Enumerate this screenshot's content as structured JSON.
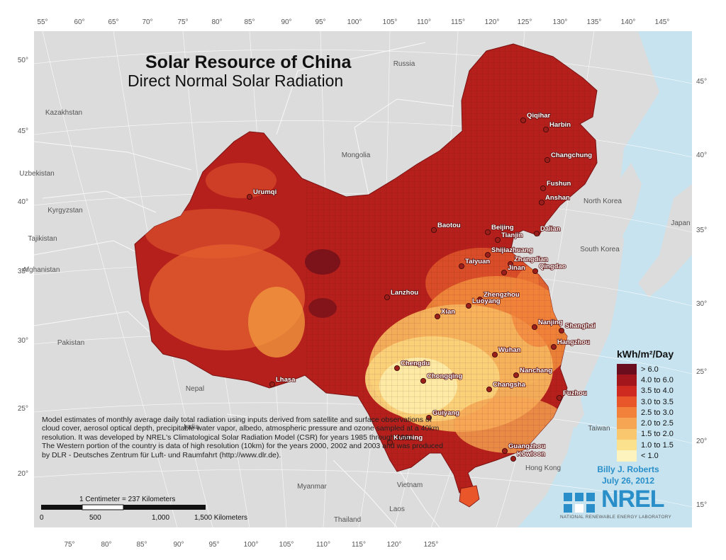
{
  "title": "Solar Resource of China",
  "subtitle": "Direct Normal Solar Radiation",
  "description": {
    "para1": "Model estimates of monthly average daily total radiation using inputs derived from satellite and surface observations of cloud cover, aerosol optical depth, precipitable water vapor, albedo, atmospheric pressure and ozone sampled at a 40km resolution.  It was developed by NREL's Climatological Solar Radiation Model (CSR) for years 1985 through 1991.",
    "para2": "The Western portion of the country is data of high resolution (10km) for the years 2000, 2002 and 2003 and was produced by DLR - Deutsches Zentrum für Luft- und Raumfahrt (http://www.dlr.de)."
  },
  "legend": {
    "title": "kWh/m²/Day",
    "items": [
      {
        "label": "> 6.0",
        "color": "#6b0d1c"
      },
      {
        "label": "4.0 to 6.0",
        "color": "#a3161c"
      },
      {
        "label": "3.5 to 4.0",
        "color": "#cf2a1f"
      },
      {
        "label": "3.0 to 3.5",
        "color": "#e8562a"
      },
      {
        "label": "2.5 to 3.0",
        "color": "#f2813b"
      },
      {
        "label": "2.0 to 2.5",
        "color": "#f6a553"
      },
      {
        "label": "1.5 to 2.0",
        "color": "#f9c76e"
      },
      {
        "label": "1.0 to 1.5",
        "color": "#fbe08d"
      },
      {
        "label": "< 1.0",
        "color": "#fdf3bf"
      }
    ]
  },
  "author": {
    "name": "Billy J. Roberts",
    "date": "July 26, 2012"
  },
  "organization": {
    "name": "NREL",
    "full_name": "NATIONAL RENEWABLE ENERGY LABORATORY"
  },
  "scale_bar": {
    "caption": "1 Centimeter = 237 Kilometers",
    "labels": [
      "0",
      "500",
      "1,000",
      "1,500 Kilometers"
    ]
  },
  "graticule": {
    "top": [
      "55°",
      "60°",
      "65°",
      "70°",
      "75°",
      "80°",
      "85°",
      "90°",
      "95°",
      "100°",
      "105°",
      "110°",
      "115°",
      "120°",
      "125°",
      "130°",
      "135°",
      "140°",
      "145°"
    ],
    "bottom": [
      "75°",
      "80°",
      "85°",
      "90°",
      "95°",
      "100°",
      "105°",
      "110°",
      "115°",
      "120°",
      "125°"
    ],
    "left": [
      "50°",
      "45°",
      "40°",
      "35°",
      "30°",
      "25°",
      "20°"
    ],
    "right": [
      "45°",
      "40°",
      "35°",
      "30°",
      "25°",
      "20°",
      "15°"
    ]
  },
  "countries": [
    "Russia",
    "Kazakhstan",
    "Mongolia",
    "Uzbekistan",
    "Kyrgyzstan",
    "Tajikistan",
    "Afghanistan",
    "Pakistan",
    "Nepal",
    "India",
    "Myanmar",
    "Laos",
    "Vietnam",
    "Thailand",
    "North Korea",
    "South Korea",
    "Japan",
    "Taiwan",
    "Hong Kong"
  ],
  "cities": [
    "Qiqihar",
    "Harbin",
    "Changchung",
    "Fushun",
    "Anshan",
    "Dalian",
    "Urumqi",
    "Baotou",
    "Beijing",
    "Tianjin",
    "Shijiazhuang",
    "Taiyuan",
    "Zhangdian",
    "Jinan",
    "Qingdao",
    "Lanzhou",
    "Zhengzhou",
    "Luoyang",
    "Xian",
    "Nanjing",
    "Shanghai",
    "Hangzhou",
    "Wuhan",
    "Chengdu",
    "Chongqing",
    "Nanchang",
    "Changsha",
    "Lhasa",
    "Fuzhou",
    "Guiyang",
    "Kunming",
    "Guangzhou",
    "Kowloon"
  ]
}
